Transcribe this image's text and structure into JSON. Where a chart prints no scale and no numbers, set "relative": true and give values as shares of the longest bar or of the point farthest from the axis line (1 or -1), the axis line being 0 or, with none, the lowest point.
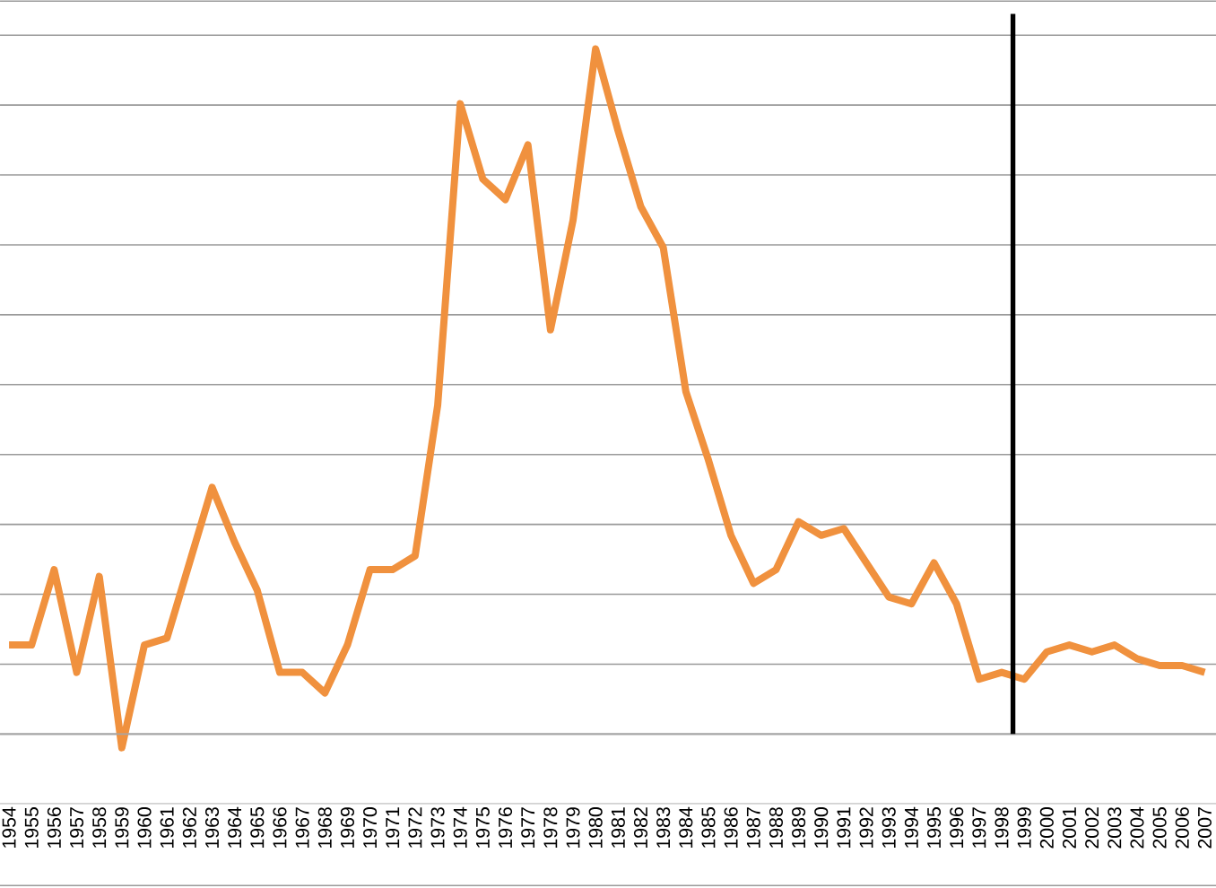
{
  "chart_data": {
    "type": "line",
    "relative": true,
    "grid": "y",
    "x": [
      1954,
      1955,
      1956,
      1957,
      1958,
      1959,
      1960,
      1961,
      1962,
      1963,
      1964,
      1965,
      1966,
      1967,
      1968,
      1969,
      1970,
      1971,
      1972,
      1973,
      1974,
      1975,
      1976,
      1977,
      1978,
      1979,
      1980,
      1981,
      1982,
      1983,
      1984,
      1985,
      1986,
      1987,
      1988,
      1989,
      1990,
      1991,
      1992,
      1993,
      1994,
      1995,
      1996,
      1997,
      1998,
      1999,
      2000,
      2001,
      2002,
      2003,
      2004,
      2005,
      2006,
      2007
    ],
    "xlim": [
      1953.6,
      2007.5
    ],
    "xticks": [
      1954,
      1955,
      1956,
      1957,
      1958,
      1959,
      1960,
      1961,
      1962,
      1963,
      1964,
      1965,
      1966,
      1967,
      1968,
      1969,
      1970,
      1971,
      1972,
      1973,
      1974,
      1975,
      1976,
      1977,
      1978,
      1979,
      1980,
      1981,
      1982,
      1983,
      1984,
      1985,
      1986,
      1987,
      1988,
      1989,
      1990,
      1991,
      1992,
      1993,
      1994,
      1995,
      1996,
      1997,
      1998,
      1999,
      2000,
      2001,
      2002,
      2003,
      2004,
      2005,
      2006,
      2007
    ],
    "series": [
      {
        "color": "#f0913e",
        "values": [
          0.13,
          0.13,
          0.24,
          0.09,
          0.23,
          -0.02,
          0.13,
          0.14,
          0.25,
          0.36,
          0.28,
          0.21,
          0.09,
          0.09,
          0.06,
          0.13,
          0.24,
          0.24,
          0.26,
          0.48,
          0.92,
          0.81,
          0.78,
          0.86,
          0.59,
          0.75,
          1.0,
          0.88,
          0.77,
          0.71,
          0.5,
          0.4,
          0.29,
          0.22,
          0.24,
          0.31,
          0.29,
          0.3,
          0.25,
          0.2,
          0.19,
          0.25,
          0.19,
          0.08,
          0.09,
          0.08,
          0.12,
          0.13,
          0.12,
          0.13,
          0.11,
          0.1,
          0.1,
          0.09
        ]
      }
    ],
    "ref_lines": [
      {
        "axis": "x",
        "value": 1998.5,
        "color": "#000000"
      }
    ]
  }
}
